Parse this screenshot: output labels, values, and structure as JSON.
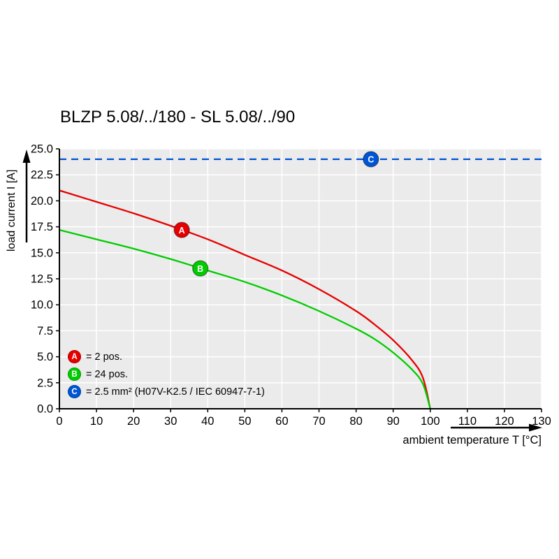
{
  "title": "BLZP 5.08/../180 - SL 5.08/../90",
  "axes": {
    "x_label": "ambient temperature T [°C]",
    "y_label": "load current I [A]"
  },
  "legend": [
    {
      "id": "A",
      "label": "= 2 pos.",
      "color": "#e60000"
    },
    {
      "id": "B",
      "label": "= 24 pos.",
      "color": "#00cc00"
    },
    {
      "id": "C",
      "label": "= 2.5 mm² (H07V-K2.5 / IEC 60947-7-1)",
      "color": "#0055d4"
    }
  ],
  "chart_data": {
    "type": "line",
    "title": "BLZP 5.08/../180 - SL 5.08/../90",
    "xlabel": "ambient temperature T [°C]",
    "ylabel": "load current I [A]",
    "xlim": [
      0,
      130
    ],
    "ylim": [
      0,
      25
    ],
    "grid": true,
    "plot_background": "#ebebeb",
    "gridline_color": "#ffffff",
    "x_tick_values": [
      0,
      10,
      20,
      30,
      40,
      50,
      60,
      70,
      80,
      90,
      100,
      110,
      120,
      130
    ],
    "x_tick_labels": [
      "0",
      "10",
      "20",
      "30",
      "40",
      "50",
      "60",
      "70",
      "80",
      "90",
      "100",
      "110",
      "120",
      "130"
    ],
    "y_tick_values": [
      0,
      2.5,
      5,
      7.5,
      10,
      12.5,
      15,
      17.5,
      20,
      22.5,
      25
    ],
    "y_tick_labels": [
      "0.0",
      "2.5",
      "5.0",
      "7.5",
      "10.0",
      "12.5",
      "15.0",
      "17.5",
      "20.0",
      "22.5",
      "25.0"
    ],
    "series": [
      {
        "id": "A",
        "name": "2 pos.",
        "color": "#e60000",
        "style": "solid",
        "points": [
          [
            0,
            21.0
          ],
          [
            10,
            19.9
          ],
          [
            20,
            18.8
          ],
          [
            30,
            17.6
          ],
          [
            40,
            16.3
          ],
          [
            50,
            14.8
          ],
          [
            60,
            13.3
          ],
          [
            70,
            11.5
          ],
          [
            80,
            9.4
          ],
          [
            85,
            8.1
          ],
          [
            90,
            6.6
          ],
          [
            95,
            4.7
          ],
          [
            98,
            3.0
          ],
          [
            100,
            0
          ]
        ]
      },
      {
        "id": "B",
        "name": "24 pos.",
        "color": "#00cc00",
        "style": "solid",
        "points": [
          [
            0,
            17.2
          ],
          [
            10,
            16.3
          ],
          [
            20,
            15.4
          ],
          [
            30,
            14.4
          ],
          [
            40,
            13.3
          ],
          [
            50,
            12.2
          ],
          [
            60,
            10.9
          ],
          [
            70,
            9.4
          ],
          [
            80,
            7.7
          ],
          [
            85,
            6.7
          ],
          [
            90,
            5.4
          ],
          [
            95,
            3.8
          ],
          [
            98,
            2.4
          ],
          [
            100,
            0
          ]
        ]
      },
      {
        "id": "C",
        "name": "2.5 mm² (H07V-K2.5 / IEC 60947-7-1)",
        "color": "#0055d4",
        "style": "dashed",
        "points": [
          [
            0,
            24
          ],
          [
            130,
            24
          ]
        ]
      }
    ],
    "markers": [
      {
        "id": "A",
        "x": 33,
        "y": 17.2,
        "color": "#e60000"
      },
      {
        "id": "B",
        "x": 38,
        "y": 13.5,
        "color": "#00cc00"
      },
      {
        "id": "C",
        "x": 84,
        "y": 24.0,
        "color": "#0055d4"
      }
    ]
  }
}
